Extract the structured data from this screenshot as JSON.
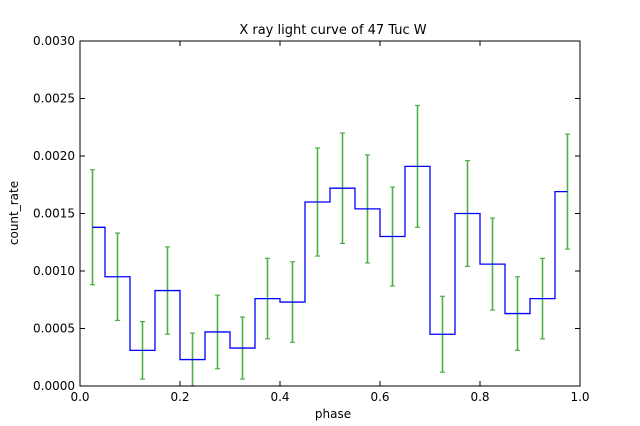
{
  "chart_data": {
    "type": "line",
    "title": "X ray light curve of 47 Tuc W",
    "xlabel": "phase",
    "ylabel": "count_rate",
    "xlim": [
      0.0,
      1.0
    ],
    "ylim": [
      0.0,
      0.003
    ],
    "xticks": [
      "0.0",
      "0.2",
      "0.4",
      "0.6",
      "0.8",
      "1.0"
    ],
    "yticks": [
      "0.0000",
      "0.0005",
      "0.0010",
      "0.0015",
      "0.0020",
      "0.0025",
      "0.0030"
    ],
    "grid": false,
    "style": "steps-mid",
    "bin_width": 0.05,
    "series": [
      {
        "color": "#0000ff",
        "x": [
          0.025,
          0.075,
          0.125,
          0.175,
          0.225,
          0.275,
          0.325,
          0.375,
          0.425,
          0.475,
          0.525,
          0.575,
          0.625,
          0.675,
          0.725,
          0.775,
          0.825,
          0.875,
          0.925,
          0.975
        ],
        "y": [
          0.00138,
          0.00095,
          0.00031,
          0.00083,
          0.00023,
          0.00047,
          0.00033,
          0.00076,
          0.00073,
          0.0016,
          0.00172,
          0.00154,
          0.0013,
          0.00191,
          0.00045,
          0.0015,
          0.00106,
          0.00063,
          0.00076,
          0.00169
        ],
        "yerr": [
          0.0005,
          0.00038,
          0.00025,
          0.00038,
          0.00023,
          0.00032,
          0.00027,
          0.00035,
          0.00035,
          0.00047,
          0.00048,
          0.00047,
          0.00043,
          0.00053,
          0.00033,
          0.00046,
          0.0004,
          0.00032,
          0.00035,
          0.0005
        ],
        "err_color": "#4daf4a"
      }
    ]
  }
}
